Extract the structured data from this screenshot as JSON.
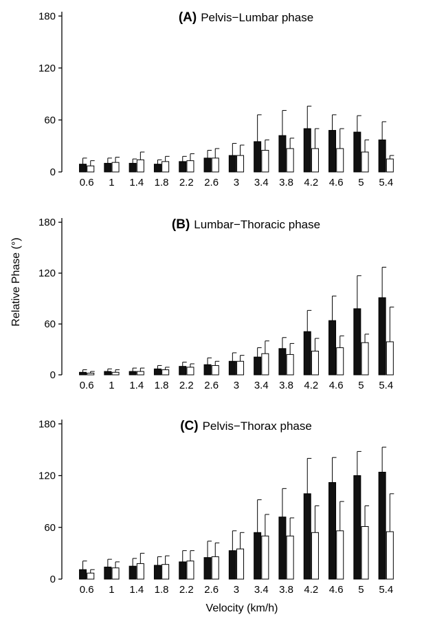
{
  "figure": {
    "ylabel": "Relative Phase (°)",
    "xlabel": "Velocity (km/h)",
    "colors": {
      "series_1": "#111111",
      "series_2": "#ffffff",
      "axis": "#000000"
    }
  },
  "chart_data": [
    {
      "type": "bar",
      "panel": "(A)",
      "title": "Pelvis−Lumbar phase",
      "categories": [
        "0.6",
        "1",
        "1.4",
        "1.8",
        "2.2",
        "2.6",
        "3",
        "3.4",
        "3.8",
        "4.2",
        "4.6",
        "5",
        "5.4"
      ],
      "yticks": [
        "0",
        "60",
        "120",
        "180"
      ],
      "ylim": [
        0,
        185
      ],
      "error_bars": "upper standard deviation",
      "series": [
        {
          "color": "#111111",
          "values": [
            9,
            10,
            10,
            9,
            12,
            16,
            19,
            35,
            42,
            50,
            48,
            46,
            37
          ],
          "error": [
            7,
            6,
            5,
            5,
            6,
            9,
            14,
            31,
            29,
            26,
            18,
            19,
            21
          ]
        },
        {
          "color": "#ffffff",
          "values": [
            7,
            11,
            14,
            12,
            13,
            16,
            19,
            25,
            27,
            27,
            27,
            23,
            15
          ],
          "error": [
            6,
            6,
            9,
            6,
            8,
            11,
            12,
            12,
            12,
            23,
            23,
            14,
            4
          ]
        }
      ]
    },
    {
      "type": "bar",
      "panel": "(B)",
      "title": "Lumbar−Thoracic phase",
      "categories": [
        "0.6",
        "1",
        "1.4",
        "1.8",
        "2.2",
        "2.6",
        "3",
        "3.4",
        "3.8",
        "4.2",
        "4.6",
        "5",
        "5.4"
      ],
      "yticks": [
        "0",
        "60",
        "120",
        "180"
      ],
      "ylim": [
        0,
        185
      ],
      "error_bars": "upper standard deviation",
      "series": [
        {
          "color": "#111111",
          "values": [
            3,
            4,
            4,
            7,
            10,
            12,
            16,
            21,
            31,
            51,
            64,
            78,
            91
          ],
          "error": [
            3,
            3,
            4,
            4,
            5,
            8,
            10,
            11,
            13,
            25,
            29,
            39,
            36
          ]
        },
        {
          "color": "#ffffff",
          "values": [
            2,
            3,
            4,
            6,
            9,
            11,
            16,
            25,
            24,
            28,
            32,
            38,
            39
          ],
          "error": [
            2,
            3,
            4,
            3,
            4,
            5,
            7,
            15,
            13,
            15,
            14,
            10,
            41
          ]
        }
      ]
    },
    {
      "type": "bar",
      "panel": "(C)",
      "title": "Pelvis−Thorax phase",
      "categories": [
        "0.6",
        "1",
        "1.4",
        "1.8",
        "2.2",
        "2.6",
        "3",
        "3.4",
        "3.8",
        "4.2",
        "4.6",
        "5",
        "5.4"
      ],
      "yticks": [
        "0",
        "60",
        "120",
        "180"
      ],
      "ylim": [
        0,
        185
      ],
      "error_bars": "upper standard deviation",
      "series": [
        {
          "color": "#111111",
          "values": [
            11,
            14,
            15,
            16,
            20,
            25,
            33,
            54,
            72,
            99,
            112,
            120,
            124
          ],
          "error": [
            10,
            9,
            9,
            10,
            13,
            19,
            23,
            38,
            33,
            41,
            29,
            28,
            29
          ]
        },
        {
          "color": "#ffffff",
          "values": [
            7,
            13,
            18,
            17,
            21,
            26,
            35,
            50,
            50,
            54,
            56,
            61,
            55
          ],
          "error": [
            4,
            7,
            12,
            10,
            12,
            16,
            19,
            25,
            21,
            31,
            34,
            24,
            44
          ]
        }
      ]
    }
  ]
}
